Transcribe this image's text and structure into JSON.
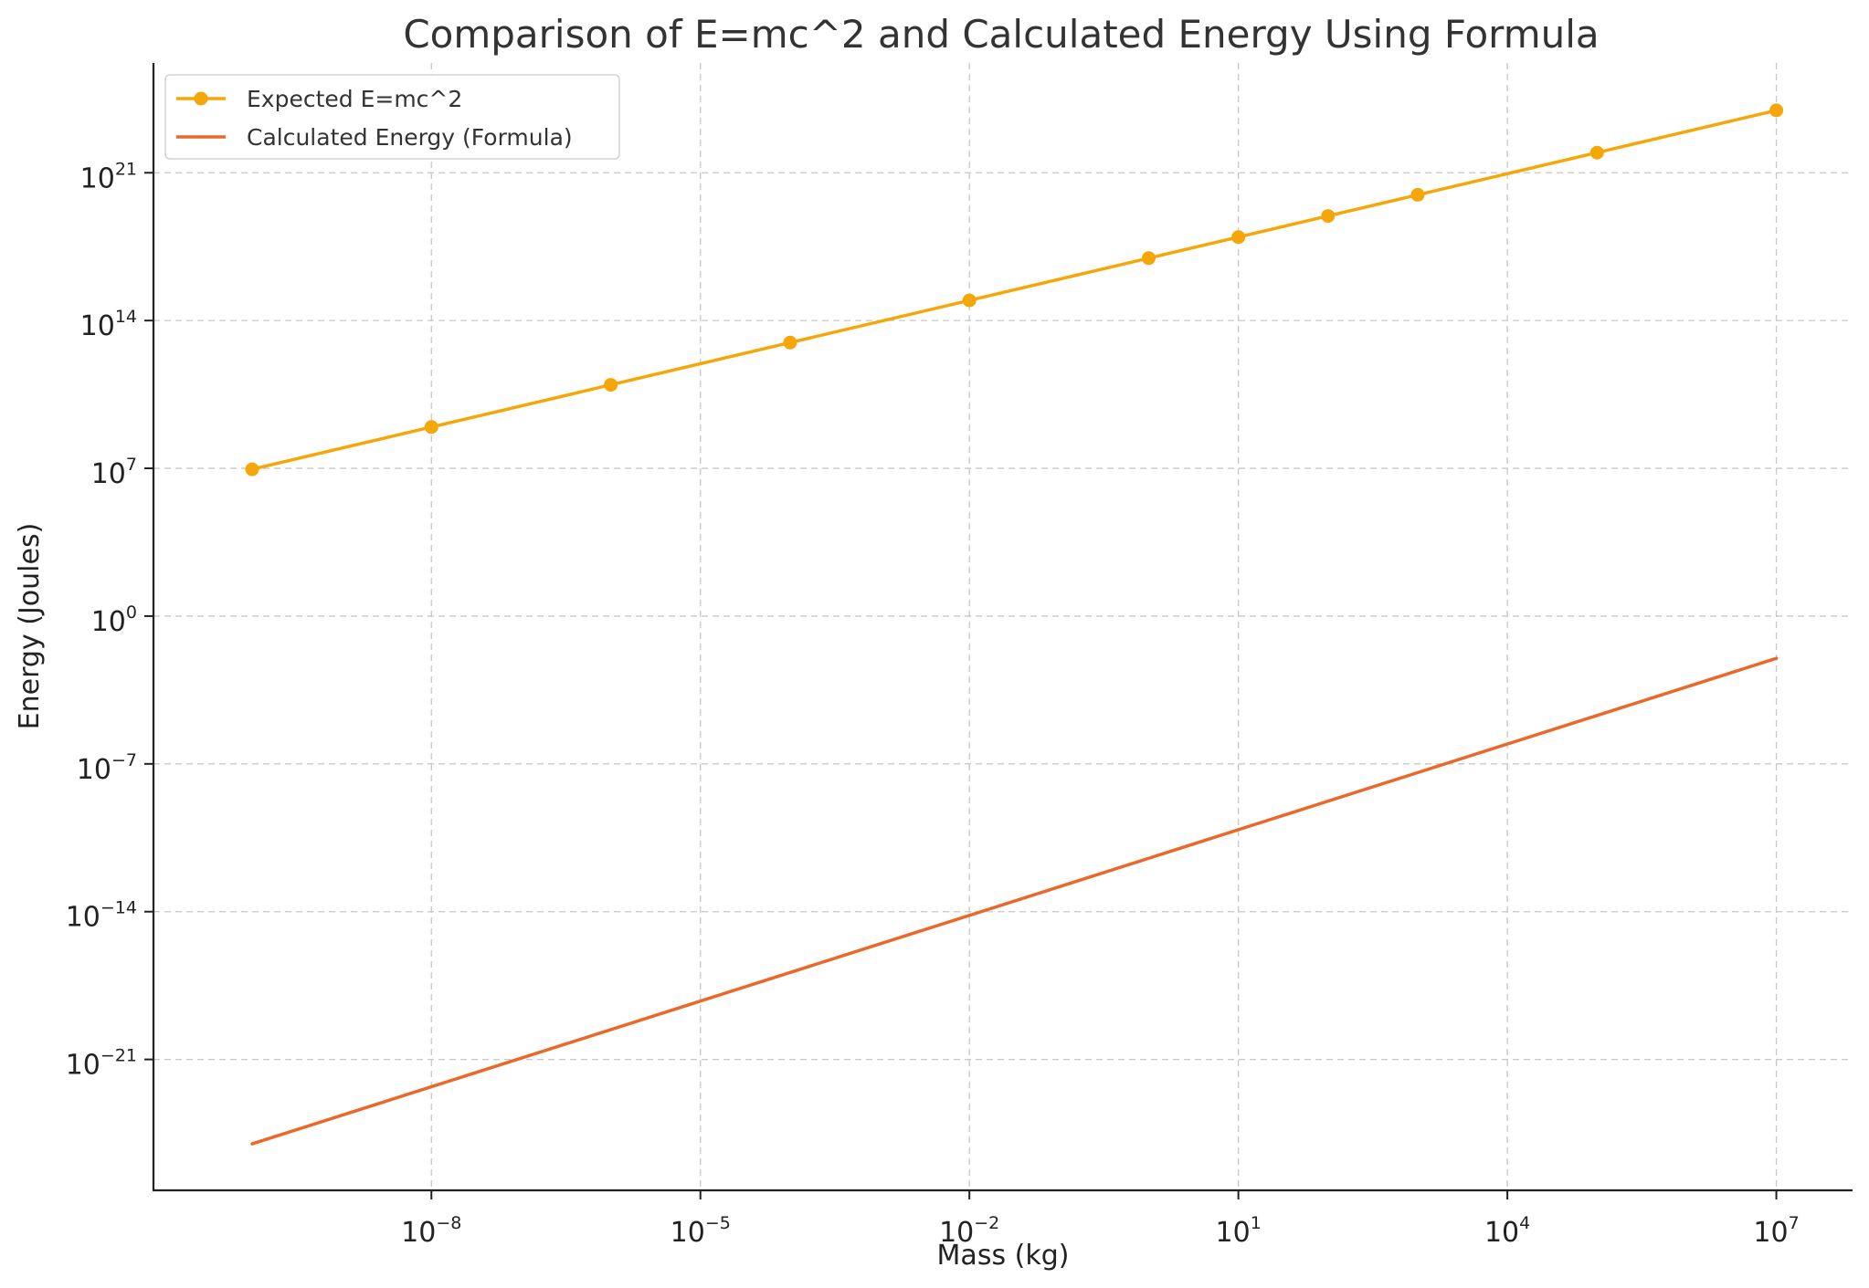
{
  "chart_data": {
    "type": "line",
    "title": "Comparison of E=mc^2 and Calculated Energy Using Formula",
    "xlabel": "Mass (kg)",
    "ylabel": "Energy (Joules)",
    "xscale": "log",
    "yscale": "log",
    "xlim_log10": [
      -11.1,
      7.85
    ],
    "ylim_log10": [
      -27.2,
      26.2
    ],
    "xticks": [
      {
        "base": "10",
        "exp": "−8",
        "log10": -8
      },
      {
        "base": "10",
        "exp": "−5",
        "log10": -5
      },
      {
        "base": "10",
        "exp": "−2",
        "log10": -2
      },
      {
        "base": "10",
        "exp": "1",
        "log10": 1
      },
      {
        "base": "10",
        "exp": "4",
        "log10": 4
      },
      {
        "base": "10",
        "exp": "7",
        "log10": 7
      }
    ],
    "yticks": [
      {
        "base": "10",
        "exp": "−21",
        "log10": -21
      },
      {
        "base": "10",
        "exp": "−14",
        "log10": -14
      },
      {
        "base": "10",
        "exp": "−7",
        "log10": -7
      },
      {
        "base": "10",
        "exp": "0",
        "log10": 0
      },
      {
        "base": "10",
        "exp": "7",
        "log10": 7
      },
      {
        "base": "10",
        "exp": "14",
        "log10": 14
      },
      {
        "base": "10",
        "exp": "21",
        "log10": 21
      }
    ],
    "grid": true,
    "legend_position": "top-left",
    "series": [
      {
        "name": "Expected E=mc^2",
        "color": "#f5a70a",
        "marker": "circle",
        "x": [
          1e-10,
          1e-08,
          1e-06,
          0.0001,
          0.01,
          1,
          10,
          100,
          1000,
          100000,
          10000000
        ],
        "y": [
          9000000.0,
          900000000.0,
          90000000000.0,
          9000000000000.0,
          900000000000000.0,
          9e+16,
          9e+17,
          9e+18,
          9e+19,
          9e+21,
          9e+23
        ]
      },
      {
        "name": "Calculated Energy (Formula)",
        "color": "#e8692a",
        "marker": "none",
        "x": [
          1e-10,
          10000000
        ],
        "y": [
          1e-25,
          0.01
        ]
      }
    ]
  }
}
